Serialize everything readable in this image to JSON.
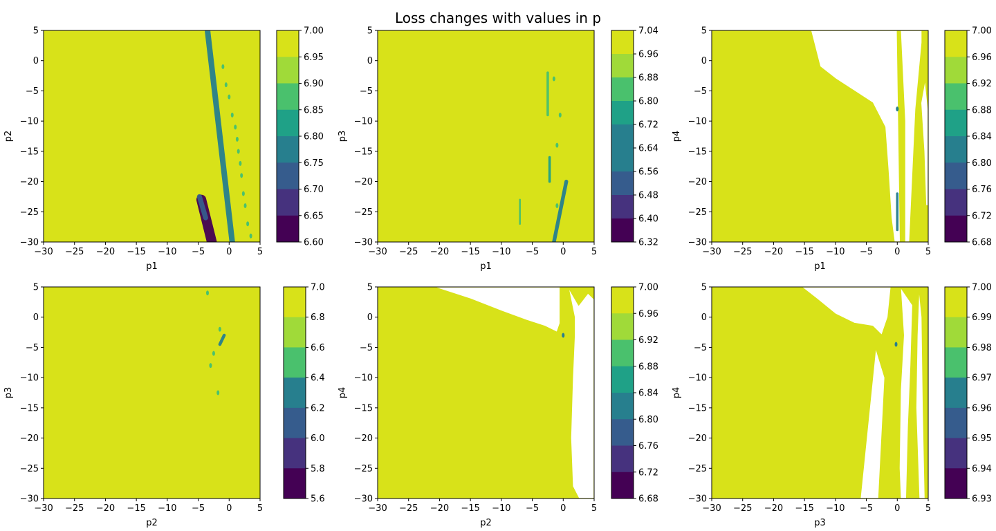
{
  "figure": {
    "title": "Loss changes with values in p",
    "field_color": "#d8e219",
    "viridis": [
      "#440154",
      "#46327e",
      "#365c8d",
      "#277f8e",
      "#1fa187",
      "#4ac16d",
      "#a0da39",
      "#fde725"
    ]
  },
  "chart_data": [
    {
      "type": "heatmap",
      "subplot": "top-left",
      "xlabel": "p1",
      "ylabel": "p2",
      "xlim": [
        -30,
        5
      ],
      "ylim": [
        -30,
        5
      ],
      "xticks": [
        "−30",
        "−25",
        "−20",
        "−15",
        "−10",
        "−5",
        "0",
        "5"
      ],
      "yticks": [
        "5",
        "0",
        "−5",
        "−10",
        "−15",
        "−20",
        "−25",
        "−30"
      ],
      "colorbar": {
        "ticks": [
          "7.00",
          "6.95",
          "6.90",
          "6.85",
          "6.80",
          "6.75",
          "6.70",
          "6.65",
          "6.60"
        ],
        "min": 6.6,
        "max": 7.0
      },
      "features": [
        {
          "kind": "band",
          "from": [
            -3.5,
            5
          ],
          "to": [
            0.5,
            -30
          ],
          "color": "#277f8e",
          "width": 0.9
        },
        {
          "kind": "band",
          "from": [
            -4.5,
            -23
          ],
          "to": [
            -2.8,
            -30
          ],
          "color": "#440154",
          "width": 1.6
        },
        {
          "kind": "band",
          "from": [
            -4.8,
            -22.5
          ],
          "to": [
            -3.8,
            -26
          ],
          "color": "#365c8d",
          "width": 0.8
        },
        {
          "kind": "dots",
          "points": [
            [
              -1,
              -1
            ],
            [
              -0.5,
              -4
            ],
            [
              0,
              -6
            ],
            [
              0.5,
              -9
            ],
            [
              1,
              -11
            ],
            [
              1.3,
              -13
            ],
            [
              1.5,
              -15
            ],
            [
              1.8,
              -17
            ],
            [
              2,
              -19
            ],
            [
              2.3,
              -22
            ],
            [
              2.6,
              -24
            ],
            [
              3,
              -27
            ],
            [
              3.5,
              -29
            ]
          ],
          "color": "#4ac16d"
        }
      ]
    },
    {
      "type": "heatmap",
      "subplot": "top-middle",
      "xlabel": "p1",
      "ylabel": "p3",
      "xlim": [
        -30,
        5
      ],
      "ylim": [
        -30,
        5
      ],
      "xticks": [
        "−30",
        "−25",
        "−20",
        "−15",
        "−10",
        "−5",
        "0",
        "5"
      ],
      "yticks": [
        "5",
        "0",
        "−5",
        "−10",
        "−15",
        "−20",
        "−25",
        "−30"
      ],
      "colorbar": {
        "ticks": [
          "7.04",
          "6.96",
          "6.88",
          "6.80",
          "6.72",
          "6.64",
          "6.56",
          "6.48",
          "6.40",
          "6.32"
        ],
        "min": 6.32,
        "max": 7.04
      },
      "features": [
        {
          "kind": "band",
          "from": [
            0.5,
            -20
          ],
          "to": [
            -1.5,
            -30
          ],
          "color": "#277f8e",
          "width": 0.6
        },
        {
          "kind": "band",
          "from": [
            -2.5,
            -2
          ],
          "to": [
            -2.5,
            -9
          ],
          "color": "#4ac16d",
          "width": 0.4
        },
        {
          "kind": "band",
          "from": [
            -2.2,
            -16
          ],
          "to": [
            -2.2,
            -20
          ],
          "color": "#1fa187",
          "width": 0.4
        },
        {
          "kind": "band",
          "from": [
            -7,
            -23
          ],
          "to": [
            -7,
            -27
          ],
          "color": "#4ac16d",
          "width": 0.3
        },
        {
          "kind": "dots",
          "points": [
            [
              -1.5,
              -3
            ],
            [
              -0.5,
              -9
            ],
            [
              -1,
              -14
            ],
            [
              -1,
              -24
            ]
          ],
          "color": "#4ac16d"
        }
      ]
    },
    {
      "type": "heatmap",
      "subplot": "top-right",
      "xlabel": "p1",
      "ylabel": "p4",
      "xlim": [
        -30,
        5
      ],
      "ylim": [
        -30,
        5
      ],
      "xticks": [
        "−30",
        "−25",
        "−20",
        "−15",
        "−10",
        "−5",
        "0",
        "5"
      ],
      "yticks": [
        "5",
        "0",
        "−5",
        "−10",
        "−15",
        "−20",
        "−25",
        "−30"
      ],
      "colorbar": {
        "ticks": [
          "7.00",
          "6.96",
          "6.92",
          "6.88",
          "6.84",
          "6.80",
          "6.76",
          "6.72",
          "6.68"
        ],
        "min": 6.68,
        "max": 7.0
      },
      "features": [
        {
          "kind": "blank",
          "points": [
            [
              -14,
              5
            ],
            [
              -13.5,
              3
            ],
            [
              -12.5,
              -1
            ],
            [
              -10,
              -3
            ],
            [
              -7,
              -5
            ],
            [
              -4,
              -7
            ],
            [
              -2,
              -11
            ],
            [
              -1.5,
              -18
            ],
            [
              -1,
              -26
            ],
            [
              -0.5,
              -30
            ],
            [
              0.5,
              -30
            ],
            [
              0,
              5
            ]
          ]
        },
        {
          "kind": "blank",
          "points": [
            [
              0.5,
              5
            ],
            [
              1.2,
              -10
            ],
            [
              1.2,
              -30
            ],
            [
              2,
              -30
            ],
            [
              3,
              -8
            ],
            [
              4,
              3
            ],
            [
              4,
              5
            ]
          ]
        },
        {
          "kind": "blank",
          "points": [
            [
              3.8,
              -7
            ],
            [
              4.5,
              -3
            ],
            [
              5,
              -8
            ],
            [
              5,
              -24
            ],
            [
              4.6,
              -24
            ],
            [
              4.3,
              -15
            ]
          ]
        },
        {
          "kind": "band",
          "from": [
            0,
            -22
          ],
          "to": [
            0,
            -28
          ],
          "color": "#277f8e",
          "width": 0.4
        },
        {
          "kind": "dots",
          "points": [
            [
              0,
              -8
            ]
          ],
          "color": "#277f8e"
        }
      ]
    },
    {
      "type": "heatmap",
      "subplot": "bottom-left",
      "xlabel": "p2",
      "ylabel": "p3",
      "xlim": [
        -30,
        5
      ],
      "ylim": [
        -30,
        5
      ],
      "xticks": [
        "−30",
        "−25",
        "−20",
        "−15",
        "−10",
        "−5",
        "0",
        "5"
      ],
      "yticks": [
        "5",
        "0",
        "−5",
        "−10",
        "−15",
        "−20",
        "−25",
        "−30"
      ],
      "colorbar": {
        "ticks": [
          "7.0",
          "6.8",
          "6.6",
          "6.4",
          "6.2",
          "6.0",
          "5.8",
          "5.6"
        ],
        "min": 5.6,
        "max": 7.0
      },
      "features": [
        {
          "kind": "band",
          "from": [
            -0.8,
            -3
          ],
          "to": [
            -1.5,
            -4.5
          ],
          "color": "#277f8e",
          "width": 0.5
        },
        {
          "kind": "dots",
          "points": [
            [
              -3.5,
              4
            ],
            [
              -1.5,
              -2
            ],
            [
              -2.5,
              -6
            ],
            [
              -3,
              -8
            ],
            [
              -1.8,
              -12.5
            ]
          ],
          "color": "#4ac16d"
        }
      ]
    },
    {
      "type": "heatmap",
      "subplot": "bottom-middle",
      "xlabel": "p2",
      "ylabel": "p4",
      "xlim": [
        -30,
        5
      ],
      "ylim": [
        -30,
        5
      ],
      "xticks": [
        "−30",
        "−25",
        "−20",
        "−15",
        "−10",
        "−5",
        "0",
        "5"
      ],
      "yticks": [
        "5",
        "0",
        "−5",
        "−10",
        "−15",
        "−20",
        "−25",
        "−30"
      ],
      "colorbar": {
        "ticks": [
          "7.00",
          "6.96",
          "6.92",
          "6.88",
          "6.84",
          "6.80",
          "6.76",
          "6.72",
          "6.68"
        ],
        "min": 6.68,
        "max": 7.0
      },
      "features": [
        {
          "kind": "blank",
          "points": [
            [
              -21,
              5
            ],
            [
              -15,
              3
            ],
            [
              -10,
              1
            ],
            [
              -6,
              -0.5
            ],
            [
              -3,
              -1.5
            ],
            [
              -1,
              -2.5
            ],
            [
              -0.5,
              -1
            ],
            [
              -0.5,
              5
            ]
          ]
        },
        {
          "kind": "blank",
          "points": [
            [
              0.8,
              5
            ],
            [
              1.8,
              0
            ],
            [
              1.8,
              -3
            ],
            [
              1.5,
              -10
            ],
            [
              1.2,
              -20
            ],
            [
              1.5,
              -28
            ],
            [
              2.5,
              -30
            ],
            [
              5,
              -30
            ],
            [
              5,
              3
            ],
            [
              4,
              4
            ],
            [
              2.5,
              2
            ]
          ]
        },
        {
          "kind": "dots",
          "points": [
            [
              0,
              -3
            ]
          ],
          "color": "#277f8e"
        }
      ]
    },
    {
      "type": "heatmap",
      "subplot": "bottom-right",
      "xlabel": "p3",
      "ylabel": "p4",
      "xlim": [
        -30,
        5
      ],
      "ylim": [
        -30,
        5
      ],
      "xticks": [
        "−30",
        "−25",
        "−20",
        "−15",
        "−10",
        "−5",
        "0",
        "5"
      ],
      "yticks": [
        "5",
        "0",
        "−5",
        "−10",
        "−15",
        "−20",
        "−25",
        "−30"
      ],
      "colorbar": {
        "ticks": [
          "7.00",
          "6.99",
          "6.98",
          "6.97",
          "6.96",
          "6.95",
          "6.94",
          "6.93"
        ],
        "min": 6.93,
        "max": 7.0
      },
      "features": [
        {
          "kind": "blank",
          "points": [
            [
              -15.5,
              5
            ],
            [
              -13,
              3
            ],
            [
              -10,
              0.5
            ],
            [
              -7,
              -1
            ],
            [
              -4,
              -1.5
            ],
            [
              -2.5,
              -3
            ],
            [
              -1.5,
              0
            ],
            [
              -1,
              5
            ]
          ]
        },
        {
          "kind": "blank",
          "points": [
            [
              -3.5,
              -5
            ],
            [
              -4.5,
              -15
            ],
            [
              -5.5,
              -25
            ],
            [
              -6,
              -30
            ],
            [
              -3,
              -30
            ],
            [
              -2.5,
              -20
            ],
            [
              -2,
              -10
            ]
          ]
        },
        {
          "kind": "blank",
          "points": [
            [
              0.5,
              5
            ],
            [
              1,
              -3
            ],
            [
              0.5,
              -12
            ],
            [
              0.3,
              -25
            ],
            [
              0.5,
              -30
            ],
            [
              1.5,
              -30
            ],
            [
              1.8,
              -18
            ],
            [
              2.2,
              -8
            ],
            [
              2.5,
              2
            ]
          ]
        },
        {
          "kind": "blank",
          "points": [
            [
              3.5,
              5
            ],
            [
              3.2,
              -3
            ],
            [
              3,
              -15
            ],
            [
              3.5,
              -30
            ],
            [
              4.5,
              -30
            ],
            [
              4.2,
              -15
            ],
            [
              4,
              0
            ]
          ]
        },
        {
          "kind": "dots",
          "points": [
            [
              -0.2,
              -4.5
            ]
          ],
          "color": "#277f8e"
        }
      ]
    }
  ]
}
